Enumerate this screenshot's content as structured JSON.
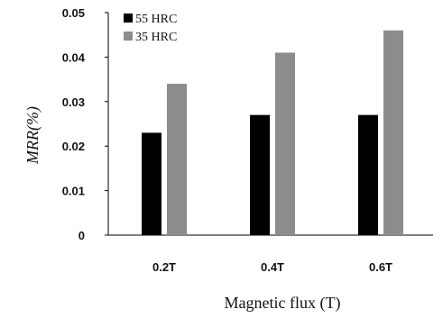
{
  "chart_data": {
    "type": "bar",
    "categories": [
      "0.2T",
      "0.4T",
      "0.6T"
    ],
    "series": [
      {
        "name": "55 HRC",
        "values": [
          0.023,
          0.027,
          0.027
        ],
        "color": "#000000"
      },
      {
        "name": "35 HRC",
        "values": [
          0.034,
          0.041,
          0.046
        ],
        "color": "#8c8c8c"
      }
    ],
    "title": "",
    "xlabel": "Magnetic flux (T)",
    "ylabel": "MRR(%)",
    "ylim": [
      0,
      0.05
    ],
    "yticks": [
      "0",
      "0.01",
      "0.02",
      "0.03",
      "0.04",
      "0.05"
    ],
    "grid": false,
    "legend_position": "top-left"
  }
}
